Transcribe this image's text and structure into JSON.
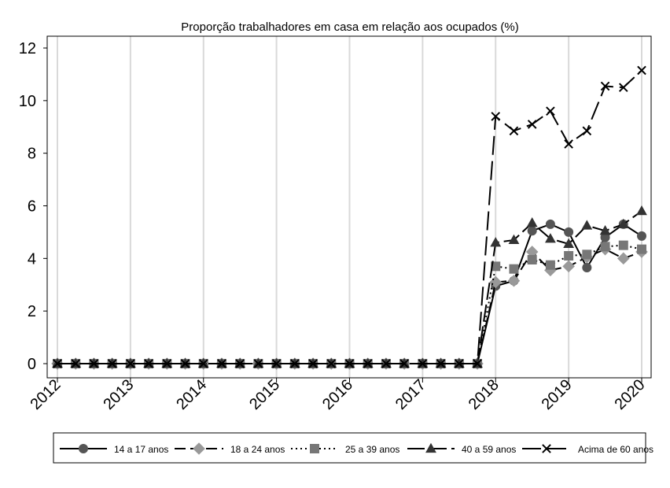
{
  "chart_data": {
    "type": "line",
    "title": "Proporção trabalhadores em casa em relação aos ocupados (%)",
    "xlabel": "",
    "ylabel": "",
    "xlim": [
      2012,
      2020
    ],
    "ylim": [
      0,
      12
    ],
    "y_ticks": [
      0,
      2,
      4,
      6,
      8,
      10,
      12
    ],
    "x_ticks": [
      2012,
      2013,
      2014,
      2015,
      2016,
      2017,
      2018,
      2019,
      2020
    ],
    "x_tick_labels": [
      "2012",
      "2013",
      "2014",
      "2015",
      "2016",
      "2017",
      "2018",
      "2019",
      "2020"
    ],
    "grid": "vertical",
    "legend_position": "bottom",
    "x": [
      2012,
      2012.25,
      2012.5,
      2012.75,
      2013,
      2013.25,
      2013.5,
      2013.75,
      2014,
      2014.25,
      2014.5,
      2014.75,
      2015,
      2015.25,
      2015.5,
      2015.75,
      2016,
      2016.25,
      2016.5,
      2016.75,
      2017,
      2017.25,
      2017.5,
      2017.75,
      2018,
      2018.25,
      2018.5,
      2018.75,
      2019,
      2019.25,
      2019.5,
      2019.75,
      2020
    ],
    "series": [
      {
        "name": "14 a 17 anos",
        "marker": "circle",
        "line": "solid",
        "color": "#555555",
        "values": [
          0,
          0,
          0,
          0,
          0,
          0,
          0,
          0,
          0,
          0,
          0,
          0,
          0,
          0,
          0,
          0,
          0,
          0,
          0,
          0,
          0,
          0,
          0,
          0,
          2.95,
          3.15,
          5.05,
          5.3,
          5.0,
          3.65,
          4.8,
          5.3,
          4.85
        ]
      },
      {
        "name": "18 a 24 anos",
        "marker": "diamond",
        "line": "dash",
        "color": "#999999",
        "values": [
          0,
          0,
          0,
          0,
          0,
          0,
          0,
          0,
          0,
          0,
          0,
          0,
          0,
          0,
          0,
          0,
          0,
          0,
          0,
          0,
          0,
          0,
          0,
          0,
          3.1,
          3.15,
          4.25,
          3.55,
          3.7,
          4.05,
          4.35,
          4.0,
          4.25
        ]
      },
      {
        "name": "25 a 39 anos",
        "marker": "square",
        "line": "dot",
        "color": "#777777",
        "values": [
          0,
          0,
          0,
          0,
          0,
          0,
          0,
          0,
          0,
          0,
          0,
          0,
          0,
          0,
          0,
          0,
          0,
          0,
          0,
          0,
          0,
          0,
          0,
          0,
          3.7,
          3.6,
          3.95,
          3.75,
          4.1,
          4.15,
          4.45,
          4.5,
          4.35
        ]
      },
      {
        "name": "40 a 59 anos",
        "marker": "triangle",
        "line": "longdash",
        "color": "#333333",
        "values": [
          0,
          0,
          0,
          0,
          0,
          0,
          0,
          0,
          0,
          0,
          0,
          0,
          0,
          0,
          0,
          0,
          0,
          0,
          0,
          0,
          0,
          0,
          0,
          0,
          4.6,
          4.7,
          5.35,
          4.75,
          4.55,
          5.25,
          5.05,
          5.3,
          5.8
        ]
      },
      {
        "name": "Acima de 60 anos",
        "marker": "x",
        "line": "longdash2",
        "color": "#000000",
        "values": [
          0,
          0,
          0,
          0,
          0,
          0,
          0,
          0,
          0,
          0,
          0,
          0,
          0,
          0,
          0,
          0,
          0,
          0,
          0,
          0,
          0,
          0,
          0,
          0,
          9.4,
          8.85,
          9.1,
          9.6,
          8.35,
          8.85,
          10.55,
          10.5,
          11.15
        ]
      }
    ]
  }
}
